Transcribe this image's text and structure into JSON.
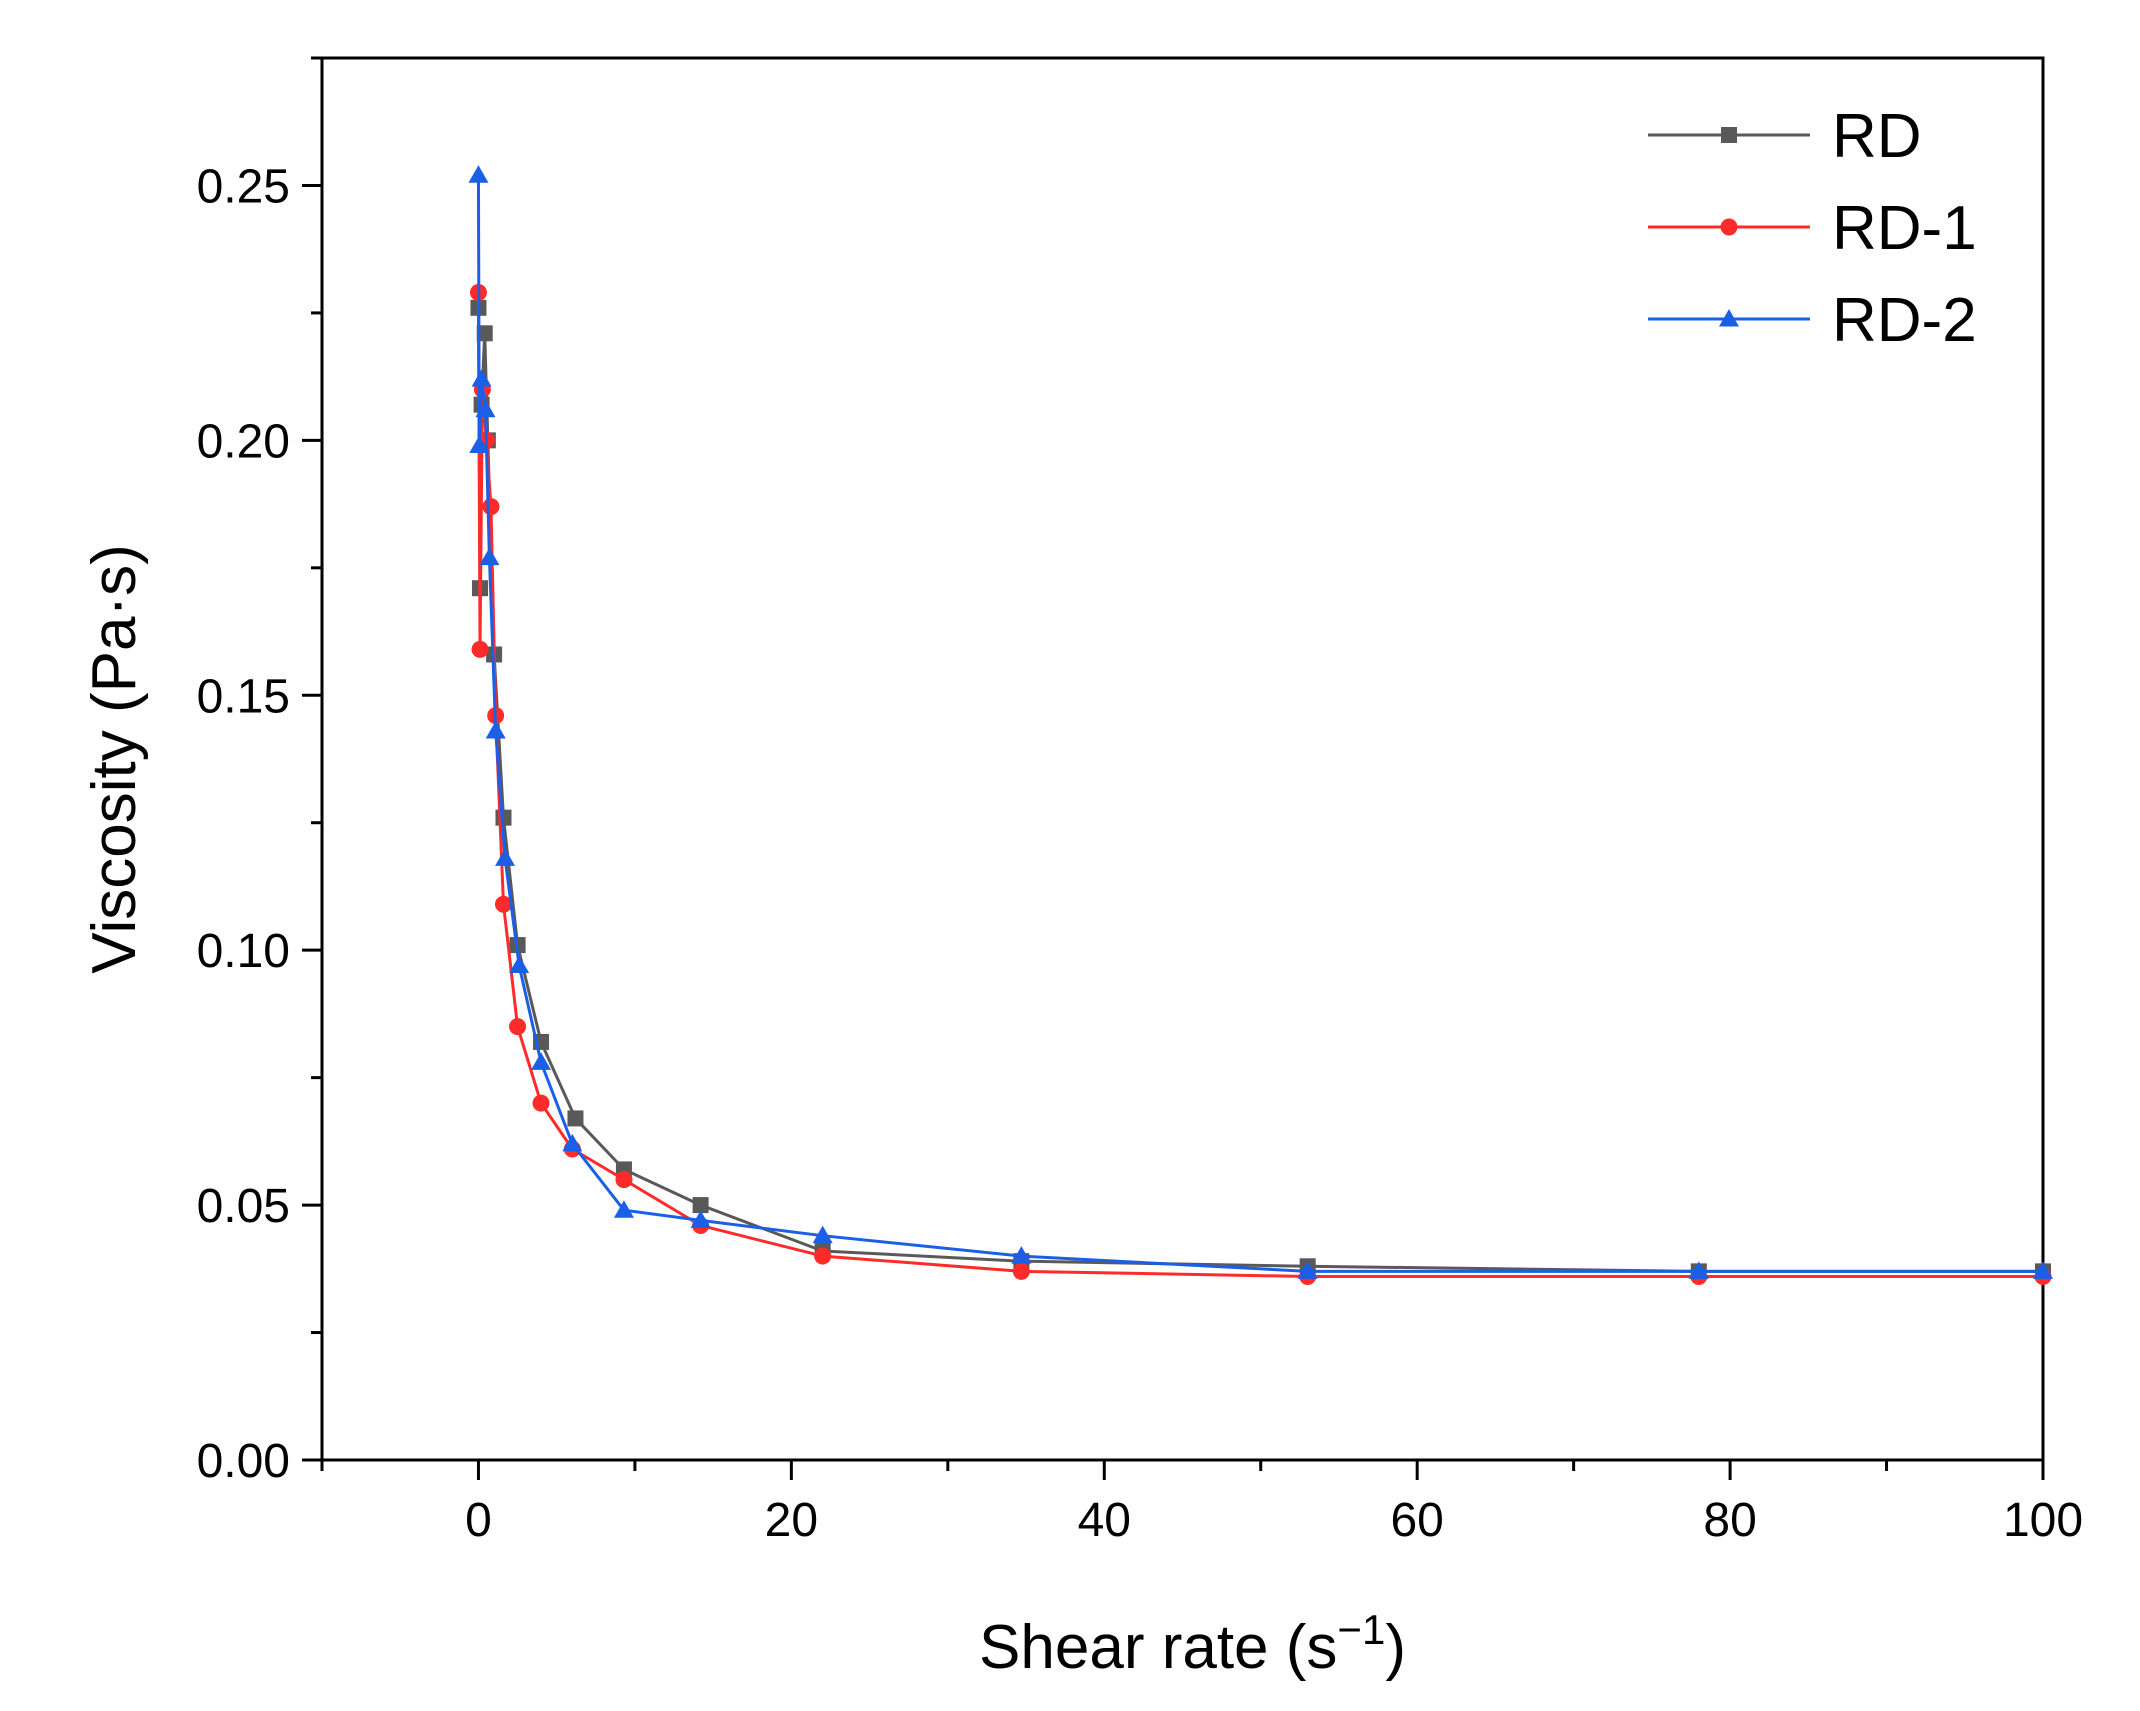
{
  "chart_data": {
    "type": "line",
    "title": "",
    "xlabel": "Shear rate (s",
    "xlabel_sup": "−1",
    "xlabel_close": ")",
    "ylabel": "Viscosity (Pa·s)",
    "xlim": [
      -10,
      100
    ],
    "ylim": [
      0,
      0.275
    ],
    "x_ticks": [
      0,
      20,
      40,
      60,
      80,
      100
    ],
    "x_tick_labels": [
      "0",
      "20",
      "40",
      "60",
      "80",
      "100"
    ],
    "y_ticks": [
      0,
      0.05,
      0.1,
      0.15,
      0.2,
      0.25
    ],
    "y_tick_labels": [
      "0.00",
      "0.05",
      "0.10",
      "0.15",
      "0.20",
      "0.25"
    ],
    "grid": false,
    "legend_position": "top-right",
    "series": [
      {
        "name": "RD",
        "color": "#595959",
        "marker": "square",
        "points": [
          [
            0.0,
            0.226
          ],
          [
            0.1,
            0.171
          ],
          [
            0.2,
            0.207
          ],
          [
            0.4,
            0.221
          ],
          [
            0.6,
            0.2
          ],
          [
            1.0,
            0.158
          ],
          [
            1.6,
            0.126
          ],
          [
            2.5,
            0.101
          ],
          [
            4.0,
            0.082
          ],
          [
            6.2,
            0.067
          ],
          [
            9.3,
            0.057
          ],
          [
            14.2,
            0.05
          ],
          [
            22.0,
            0.041
          ],
          [
            34.7,
            0.039
          ],
          [
            53.0,
            0.038
          ],
          [
            78.0,
            0.037
          ],
          [
            100.0,
            0.037
          ]
        ]
      },
      {
        "name": "RD-1",
        "color": "#ff2a2a",
        "marker": "circle",
        "points": [
          [
            0.0,
            0.229
          ],
          [
            0.1,
            0.159
          ],
          [
            0.25,
            0.21
          ],
          [
            0.5,
            0.2
          ],
          [
            0.8,
            0.187
          ],
          [
            1.1,
            0.146
          ],
          [
            1.6,
            0.109
          ],
          [
            2.5,
            0.085
          ],
          [
            4.0,
            0.07
          ],
          [
            6.0,
            0.061
          ],
          [
            9.3,
            0.055
          ],
          [
            14.2,
            0.046
          ],
          [
            22.0,
            0.04
          ],
          [
            34.7,
            0.037
          ],
          [
            53.0,
            0.036
          ],
          [
            78.0,
            0.036
          ],
          [
            100.0,
            0.036
          ]
        ]
      },
      {
        "name": "RD-2",
        "color": "#1a5fe6",
        "marker": "triangle",
        "points": [
          [
            0.0,
            0.252
          ],
          [
            0.05,
            0.199
          ],
          [
            0.2,
            0.212
          ],
          [
            0.45,
            0.206
          ],
          [
            0.7,
            0.177
          ],
          [
            1.1,
            0.143
          ],
          [
            1.7,
            0.118
          ],
          [
            2.6,
            0.097
          ],
          [
            4.0,
            0.078
          ],
          [
            6.0,
            0.062
          ],
          [
            9.3,
            0.049
          ],
          [
            14.2,
            0.047
          ],
          [
            22.0,
            0.044
          ],
          [
            34.7,
            0.04
          ],
          [
            53.0,
            0.037
          ],
          [
            78.0,
            0.037
          ],
          [
            100.0,
            0.037
          ]
        ]
      }
    ]
  }
}
